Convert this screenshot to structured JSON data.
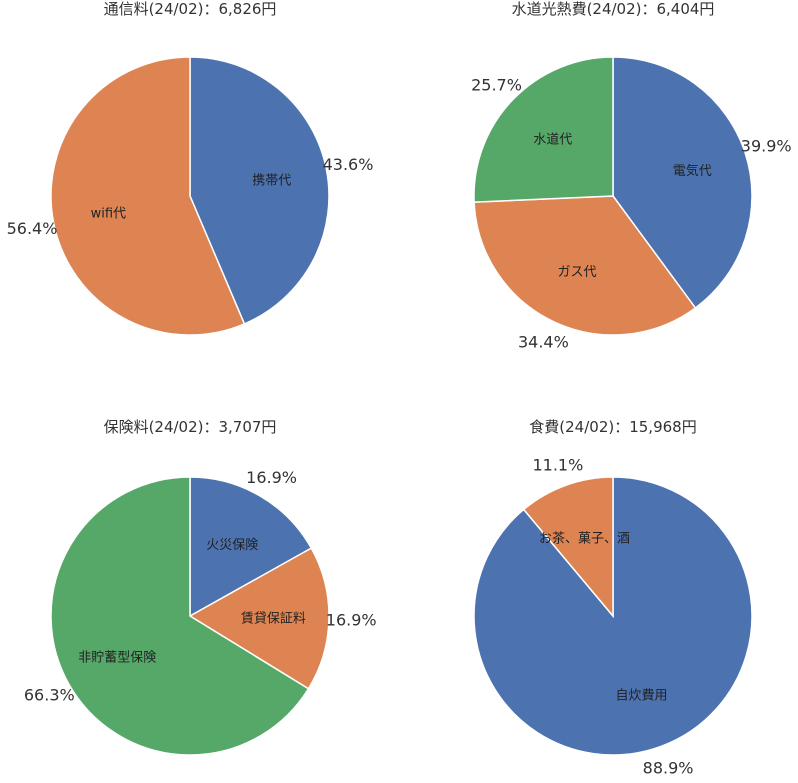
{
  "chart_data": [
    {
      "type": "pie",
      "title": "通信料(24/02)：6,826円",
      "slices": [
        {
          "label": "携帯代",
          "percent": 43.6,
          "pct_text": "43.6%",
          "color": "#4C72B0"
        },
        {
          "label": "wifi代",
          "percent": 56.4,
          "pct_text": "56.4%",
          "color": "#DD8452"
        }
      ]
    },
    {
      "type": "pie",
      "title": "水道光熱費(24/02)：6,404円",
      "slices": [
        {
          "label": "電気代",
          "percent": 39.9,
          "pct_text": "39.9%",
          "color": "#4C72B0"
        },
        {
          "label": "ガス代",
          "percent": 34.4,
          "pct_text": "34.4%",
          "color": "#DD8452"
        },
        {
          "label": "水道代",
          "percent": 25.7,
          "pct_text": "25.7%",
          "color": "#55A868"
        }
      ]
    },
    {
      "type": "pie",
      "title": "保険料(24/02)：3,707円",
      "slices": [
        {
          "label": "火災保険",
          "percent": 16.9,
          "pct_text": "16.9%",
          "color": "#4C72B0"
        },
        {
          "label": "賃貸保証料",
          "percent": 16.9,
          "pct_text": "16.9%",
          "color": "#DD8452"
        },
        {
          "label": "非貯蓄型保険",
          "percent": 66.3,
          "pct_text": "66.3%",
          "color": "#55A868"
        }
      ]
    },
    {
      "type": "pie",
      "title": "食費(24/02)：15,968円",
      "slices": [
        {
          "label": "自炊費用",
          "percent": 88.9,
          "pct_text": "88.9%",
          "color": "#4C72B0"
        },
        {
          "label": "お茶、菓子、酒",
          "percent": 11.1,
          "pct_text": "11.1%",
          "color": "#DD8452"
        }
      ]
    }
  ]
}
